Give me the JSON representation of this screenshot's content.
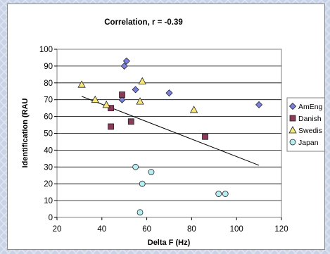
{
  "chart_data": {
    "type": "scatter",
    "title": "Correlation, r = -0.39",
    "xlabel": "Delta F (Hz)",
    "ylabel": "Identification (RAU",
    "xlim": [
      20,
      120
    ],
    "ylim": [
      0,
      100
    ],
    "x_ticks": [
      20,
      40,
      60,
      80,
      100,
      120
    ],
    "y_ticks": [
      0,
      10,
      20,
      30,
      40,
      50,
      60,
      70,
      80,
      90,
      100
    ],
    "grid": "horizontal",
    "legend_position": "right",
    "series": [
      {
        "name": "AmEng",
        "marker": "diamond",
        "color": "#7b7fe0",
        "points": [
          [
            50,
            90
          ],
          [
            51,
            93
          ],
          [
            49,
            70
          ],
          [
            55,
            76
          ],
          [
            70,
            74
          ],
          [
            110,
            67
          ]
        ]
      },
      {
        "name": "Danish",
        "marker": "square",
        "color": "#8b3a5a",
        "points": [
          [
            44,
            54
          ],
          [
            44,
            65
          ],
          [
            49,
            73
          ],
          [
            53,
            57
          ],
          [
            86,
            48
          ]
        ]
      },
      {
        "name": "Swedis",
        "marker": "triangle",
        "color": "#f7e77a",
        "points": [
          [
            31,
            79
          ],
          [
            37,
            70
          ],
          [
            42,
            67
          ],
          [
            57,
            69
          ],
          [
            58,
            81
          ],
          [
            81,
            64
          ]
        ]
      },
      {
        "name": "Japan",
        "marker": "circle",
        "color": "#b6eef2",
        "points": [
          [
            55,
            30
          ],
          [
            58,
            20
          ],
          [
            62,
            27
          ],
          [
            57,
            3
          ],
          [
            92,
            14
          ],
          [
            95,
            14
          ]
        ]
      }
    ],
    "trendline": {
      "from": [
        31,
        72
      ],
      "to": [
        110,
        31
      ]
    }
  }
}
